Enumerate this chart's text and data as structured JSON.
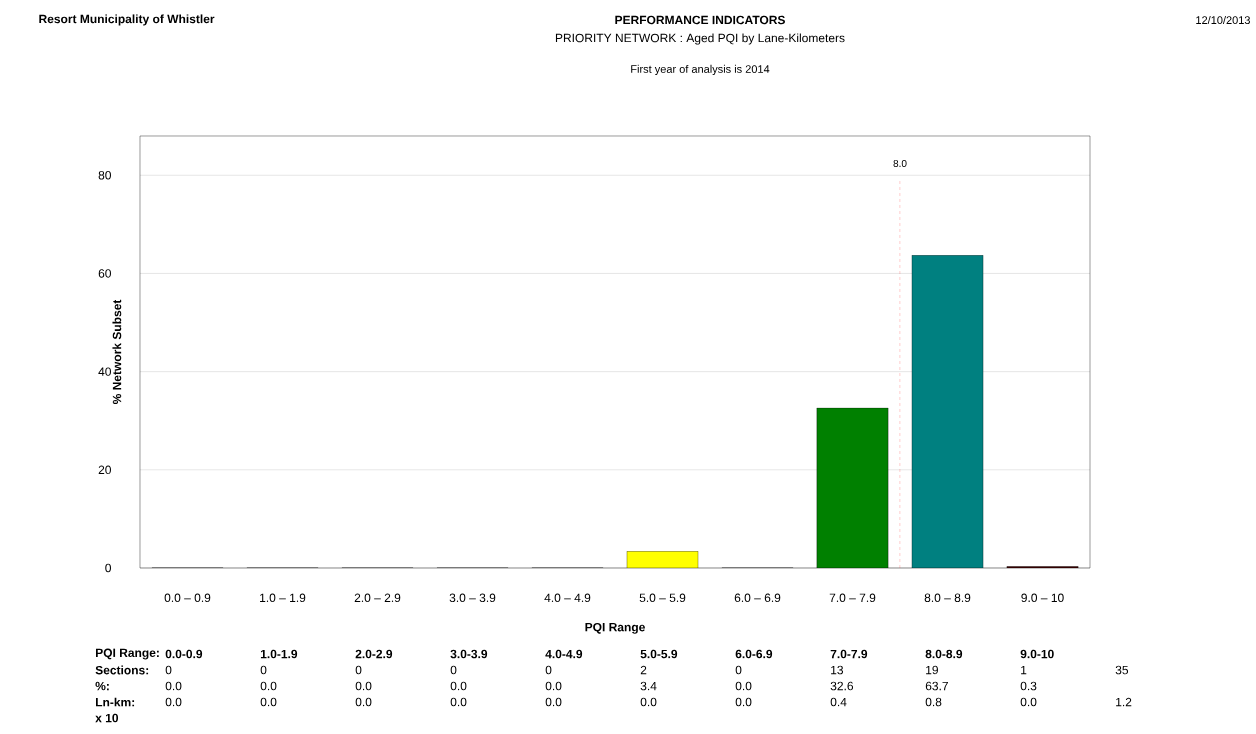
{
  "chart_data": {
    "type": "bar",
    "title": "PERFORMANCE INDICATORS",
    "subtitle": "PRIORITY NETWORK : Aged PQI by Lane-Kilometers",
    "xlabel": "PQI Range",
    "ylabel": "% Network Subset",
    "categories": [
      "0.0 – 0.9",
      "1.0 – 1.9",
      "2.0 – 2.9",
      "3.0 – 3.9",
      "4.0 – 4.9",
      "5.0 – 5.9",
      "6.0 – 6.9",
      "7.0 – 7.9",
      "8.0 – 8.9",
      "9.0 – 10"
    ],
    "values": [
      0,
      0,
      0,
      0,
      0,
      3.4,
      0,
      32.6,
      63.7,
      0.3
    ],
    "value_labels": [
      "0.0",
      "0.0",
      "0.0",
      "0.0",
      "0.0",
      "3.4",
      "0.0",
      "32.6",
      "63.7",
      "0.3"
    ],
    "colors": [
      "#000080",
      "#008000",
      "#008080",
      "#800000",
      "#800080",
      "#ffff00",
      "#000040",
      "#008000",
      "#008080",
      "#400000"
    ],
    "ylim": [
      0,
      88
    ],
    "yticks": [
      0,
      20,
      40,
      60,
      80
    ],
    "grid": "y",
    "ref_lines": [
      {
        "axis": "x",
        "value": "8.0 – 8.9",
        "label": "8.0",
        "color": "#ff0000",
        "line_style": "dashed"
      }
    ],
    "annotations": [
      "Resort Municipality of Whistler",
      "12/10/2013",
      "First year of analysis is 2014",
      "PQI Range:",
      "0.0-0.9",
      "1.0-1.9",
      "2.0-2.9",
      "3.0-3.9",
      "4.0-4.9",
      "5.0-5.9",
      "6.0-6.9",
      "7.0-7.9",
      "8.0-8.9",
      "9.0-10",
      "Sections:",
      "0",
      "0",
      "0",
      "0",
      "0",
      "2",
      "0",
      "13",
      "19",
      "1",
      "35",
      "%:",
      "Ln-km:",
      "0.0",
      "0.0",
      "0.0",
      "0.0",
      "0.0",
      "0.0",
      "0.0",
      "0.4",
      "0.8",
      "0.0",
      "1.2",
      "x 10"
    ]
  }
}
